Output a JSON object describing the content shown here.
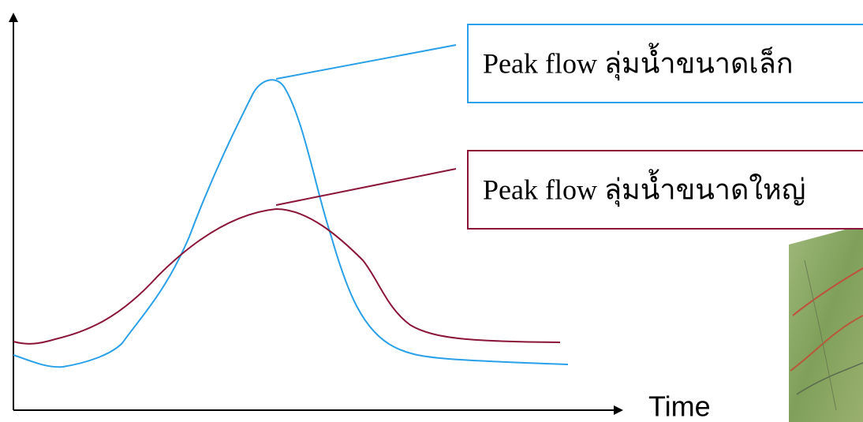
{
  "axis": {
    "x_label": "Time"
  },
  "callouts": [
    {
      "label": "Peak flow ลุ่มน้ำขนาดเล็ก"
    },
    {
      "label": "Peak flow ลุ่มน้ำขนาดใหญ่"
    }
  ]
}
